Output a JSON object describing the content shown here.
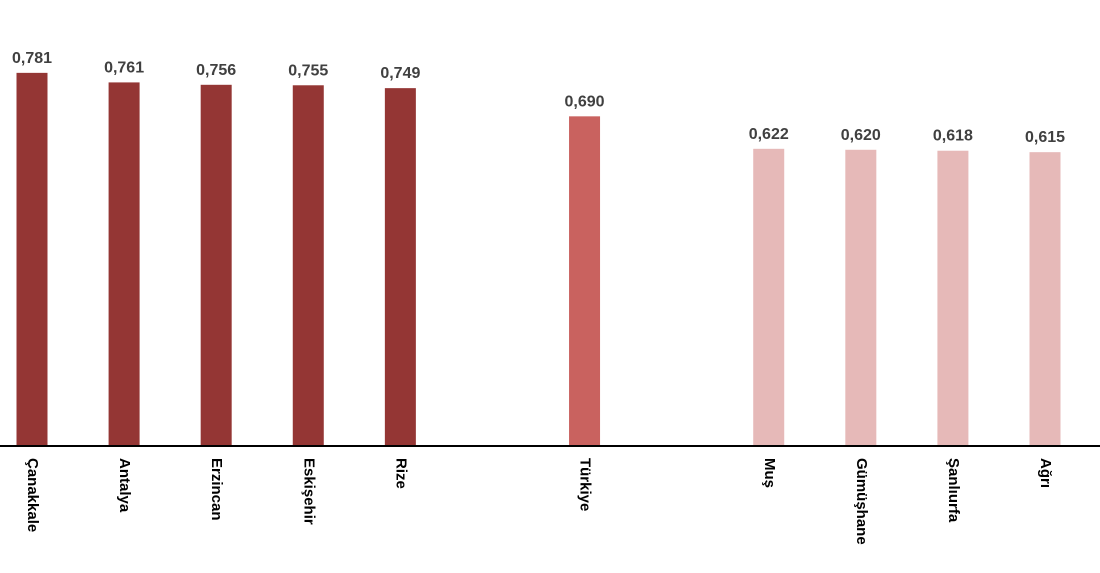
{
  "chart_data": {
    "type": "bar",
    "categories": [
      "Çanakkale",
      "Antalya",
      "Erzincan",
      "Eskişehir",
      "Rize",
      null,
      "Türkiye",
      null,
      "Muş",
      "Gümüşhane",
      "Şanlıurfa",
      "Ağrı"
    ],
    "values": [
      0.781,
      0.761,
      0.756,
      0.755,
      0.749,
      null,
      0.69,
      null,
      0.622,
      0.62,
      0.618,
      0.615
    ],
    "value_labels": [
      "0,781",
      "0,761",
      "0,756",
      "0,755",
      "0,749",
      null,
      "0,690",
      null,
      "0,622",
      "0,620",
      "0,618",
      "0,615"
    ],
    "colors": [
      "#943634",
      "#943634",
      "#943634",
      "#943634",
      "#943634",
      null,
      "#c9625f",
      null,
      "#e6b9b8",
      "#e6b9b8",
      "#e6b9b8",
      "#e6b9b8"
    ],
    "ylim": [
      0,
      0.9
    ]
  }
}
